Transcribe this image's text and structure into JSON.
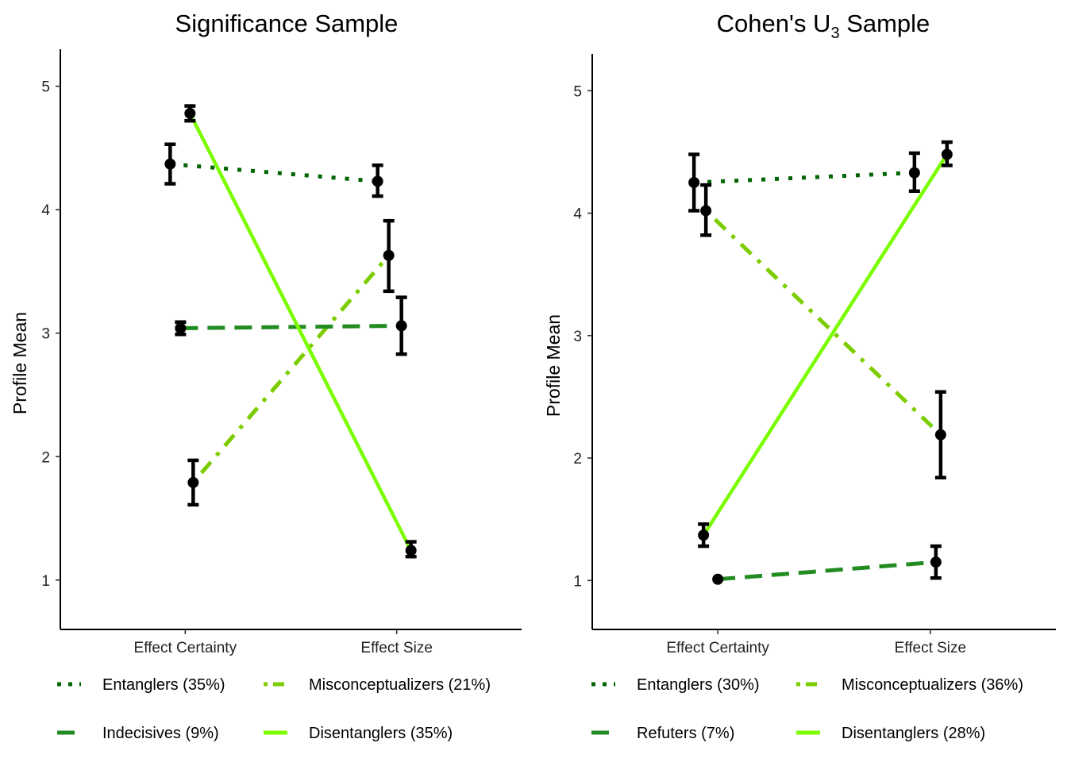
{
  "chart_data": [
    {
      "type": "line",
      "title": "Significance Sample",
      "xlabel": "",
      "ylabel": "Profile Mean",
      "categories": [
        "Effect Certainty",
        "Effect Size"
      ],
      "ylim": [
        0.6,
        5.3
      ],
      "yticks": [
        "1",
        "2",
        "3",
        "4",
        "5"
      ],
      "grid": false,
      "legend_position": "bottom",
      "series": [
        {
          "name": "Entanglers (35%)",
          "color": "#006400",
          "dash": "dotted",
          "values": [
            4.37,
            4.23
          ],
          "lower": [
            4.21,
            4.11
          ],
          "upper": [
            4.53,
            4.36
          ]
        },
        {
          "name": "Misconceptualizers (21%)",
          "color": "#7ccd00",
          "dash": "dotdash",
          "values": [
            1.79,
            3.63
          ],
          "lower": [
            1.61,
            3.34
          ],
          "upper": [
            1.97,
            3.91
          ]
        },
        {
          "name": "Indecisives (9%)",
          "color": "#228b22",
          "dash": "dashed",
          "values": [
            3.04,
            3.06
          ],
          "lower": [
            2.99,
            2.83
          ],
          "upper": [
            3.09,
            3.29
          ]
        },
        {
          "name": "Disentanglers (35%)",
          "color": "#7cfc00",
          "dash": "solid",
          "values": [
            4.78,
            1.24
          ],
          "lower": [
            4.72,
            1.19
          ],
          "upper": [
            4.84,
            1.31
          ]
        }
      ]
    },
    {
      "type": "line",
      "title": "Cohen's  U3  Sample",
      "title_parts": {
        "before": "Cohen's  U",
        "subscript": "3",
        "after": "  Sample"
      },
      "xlabel": "",
      "ylabel": "Profile Mean",
      "categories": [
        "Effect Certainty",
        "Effect Size"
      ],
      "ylim": [
        0.6,
        5.3
      ],
      "yticks": [
        "1",
        "2",
        "3",
        "4",
        "5"
      ],
      "grid": false,
      "legend_position": "bottom",
      "series": [
        {
          "name": "Entanglers (30%)",
          "color": "#006400",
          "dash": "dotted",
          "values": [
            4.25,
            4.33
          ],
          "lower": [
            4.02,
            4.18
          ],
          "upper": [
            4.48,
            4.49
          ]
        },
        {
          "name": "Misconceptualizers (36%)",
          "color": "#7ccd00",
          "dash": "dotdash",
          "values": [
            4.02,
            2.19
          ],
          "lower": [
            3.82,
            1.84
          ],
          "upper": [
            4.23,
            2.54
          ]
        },
        {
          "name": "Refuters (7%)",
          "color": "#228b22",
          "dash": "dashed",
          "values": [
            1.01,
            1.15
          ],
          "lower": [
            1.01,
            1.02
          ],
          "upper": [
            1.01,
            1.28
          ]
        },
        {
          "name": "Disentanglers (28%)",
          "color": "#7cfc00",
          "dash": "solid",
          "values": [
            1.37,
            4.48
          ],
          "lower": [
            1.28,
            4.39
          ],
          "upper": [
            1.46,
            4.58
          ]
        }
      ]
    }
  ]
}
